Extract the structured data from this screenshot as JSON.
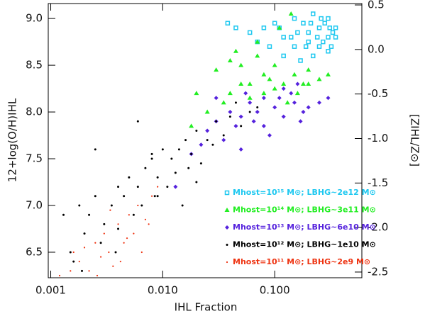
{
  "chart_data": {
    "type": "scatter",
    "xlabel": "IHL Fraction",
    "ylabel": "12+log(O/H)IHL",
    "y2label": "[ZIHL/Z⊙]",
    "xscale": "log",
    "xlim": [
      0.00095,
      0.6
    ],
    "ylim": [
      6.227,
      9.16
    ],
    "y2lim": [
      -2.564,
      0.516
    ],
    "xticks": [
      0.001,
      {
        "value": 0.01,
        "label": "0.010"
      },
      {
        "value": 0.1,
        "label": "0.100"
      }
    ],
    "yticks": [
      6.5,
      {
        "value": 7,
        "label": "7.0"
      },
      7.5,
      {
        "value": 8,
        "label": "8.0"
      },
      8.5,
      {
        "value": 9,
        "label": "9.0"
      }
    ],
    "y2ticks": [
      0.5,
      {
        "value": 0,
        "label": "0.0"
      },
      -0.5,
      {
        "value": -1,
        "label": "-1.0"
      },
      -1.5,
      {
        "value": -2,
        "label": "-2.0"
      },
      -2.5
    ],
    "legend": "lower right",
    "series": [
      {
        "name": "Mhost=10¹⁵ M⊙; LBHG~2e12 M⊙",
        "color": "#1ec8f0",
        "marker": "square",
        "x": [
          0.06,
          0.08,
          0.1,
          0.12,
          0.15,
          0.18,
          0.2,
          0.22,
          0.25,
          0.28,
          0.3,
          0.33,
          0.35,
          0.15,
          0.2,
          0.25,
          0.3,
          0.12,
          0.17,
          0.22,
          0.27,
          0.32,
          0.09,
          0.14,
          0.19,
          0.24,
          0.3,
          0.35,
          0.038,
          0.045,
          0.07,
          0.11,
          0.16,
          0.21,
          0.26,
          0.31
        ],
        "values": [
          8.85,
          8.9,
          8.95,
          8.8,
          9.0,
          8.95,
          8.85,
          9.05,
          8.9,
          8.95,
          8.8,
          8.85,
          8.9,
          8.7,
          8.75,
          8.7,
          8.65,
          8.6,
          8.55,
          8.6,
          8.75,
          8.7,
          8.7,
          8.8,
          8.7,
          8.8,
          9.0,
          8.8,
          8.95,
          8.9,
          8.75,
          8.9,
          8.85,
          8.95,
          9.0,
          8.9
        ]
      },
      {
        "name": "Mhost=10¹⁴ M⊙; LBHG~3e11 M⊙",
        "color": "#22ee22",
        "marker": "triangle",
        "x": [
          0.02,
          0.03,
          0.04,
          0.05,
          0.06,
          0.07,
          0.08,
          0.1,
          0.12,
          0.15,
          0.18,
          0.2,
          0.25,
          0.3,
          0.04,
          0.05,
          0.06,
          0.08,
          0.1,
          0.13,
          0.16,
          0.2,
          0.11,
          0.14,
          0.018,
          0.025,
          0.035,
          0.045,
          0.07,
          0.09
        ],
        "values": [
          8.2,
          8.45,
          8.55,
          8.5,
          8.3,
          8.6,
          8.4,
          8.5,
          8.3,
          8.4,
          8.3,
          8.45,
          8.35,
          8.4,
          8.2,
          8.3,
          8.15,
          8.2,
          8.25,
          8.1,
          8.2,
          8.3,
          8.9,
          9.05,
          7.85,
          8.0,
          8.1,
          8.65,
          8.75,
          8.35
        ]
      },
      {
        "name": "Mhost=10¹³ M⊙; LBHG~6e10 M⊙",
        "color": "#5522dd",
        "marker": "diamond",
        "x": [
          0.018,
          0.025,
          0.03,
          0.04,
          0.05,
          0.06,
          0.07,
          0.08,
          0.1,
          0.12,
          0.15,
          0.18,
          0.2,
          0.25,
          0.3,
          0.035,
          0.045,
          0.055,
          0.065,
          0.09,
          0.11,
          0.14,
          0.17,
          0.022,
          0.03,
          0.013,
          0.05,
          0.08,
          0.12,
          0.16
        ],
        "values": [
          7.55,
          7.8,
          7.9,
          8.0,
          7.95,
          8.1,
          8.0,
          8.15,
          8.05,
          7.95,
          8.1,
          8.0,
          8.05,
          8.1,
          8.15,
          7.7,
          7.85,
          8.2,
          7.9,
          7.75,
          8.15,
          8.2,
          7.9,
          7.65,
          8.15,
          7.2,
          7.6,
          7.85,
          8.25,
          8.3
        ]
      },
      {
        "name": "Mhost=10¹² M⊙; LBHG~1e10 M⊙",
        "color": "#000000",
        "marker": "dot",
        "x": [
          0.0013,
          0.0015,
          0.0018,
          0.002,
          0.0022,
          0.0025,
          0.003,
          0.0035,
          0.004,
          0.0045,
          0.005,
          0.006,
          0.007,
          0.008,
          0.009,
          0.01,
          0.012,
          0.014,
          0.016,
          0.018,
          0.02,
          0.025,
          0.03,
          0.035,
          0.04,
          0.05,
          0.06,
          0.07,
          0.0016,
          0.0028,
          0.0038,
          0.0055,
          0.0065,
          0.0085,
          0.011,
          0.013,
          0.017,
          0.022,
          0.028,
          0.045,
          0.0025,
          0.006,
          0.009,
          0.015,
          0.02,
          0.0019,
          0.004,
          0.008
        ],
        "values": [
          6.9,
          6.5,
          7.0,
          6.7,
          6.9,
          7.1,
          6.8,
          7.0,
          7.2,
          7.1,
          7.3,
          7.2,
          7.4,
          7.5,
          7.3,
          7.6,
          7.5,
          7.6,
          7.7,
          7.55,
          7.8,
          7.7,
          7.9,
          7.75,
          7.95,
          7.85,
          8.0,
          8.05,
          6.4,
          6.6,
          6.5,
          6.9,
          7.0,
          7.1,
          7.2,
          7.35,
          7.4,
          7.45,
          7.65,
          8.1,
          7.6,
          7.9,
          7.1,
          7.0,
          7.25,
          6.3,
          6.75,
          7.55
        ]
      },
      {
        "name": "Mhost=10¹¹ M⊙; LBHG~2e9 M⊙",
        "color": "#ee3311",
        "marker": "small-dot",
        "x": [
          0.0012,
          0.0015,
          0.0018,
          0.002,
          0.0022,
          0.0025,
          0.0028,
          0.003,
          0.0033,
          0.0036,
          0.004,
          0.0045,
          0.005,
          0.0055,
          0.006,
          0.007,
          0.008,
          0.009,
          0.0016,
          0.0026,
          0.0034,
          0.0042,
          0.0048,
          0.0065,
          0.0075
        ],
        "values": [
          6.25,
          6.3,
          6.4,
          6.55,
          6.3,
          6.6,
          6.45,
          6.7,
          6.5,
          6.35,
          6.8,
          6.6,
          6.9,
          6.7,
          7.0,
          6.85,
          7.1,
          7.2,
          6.5,
          6.25,
          6.95,
          6.4,
          6.65,
          6.5,
          6.8
        ]
      }
    ]
  }
}
